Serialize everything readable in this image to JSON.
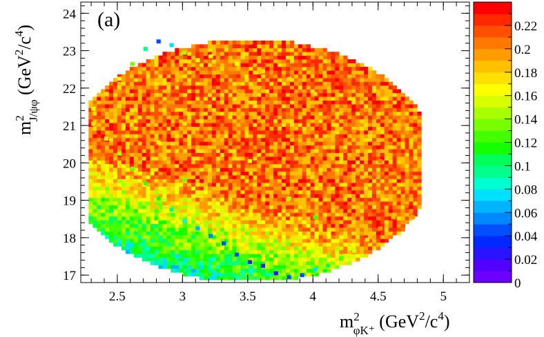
{
  "chart_data": {
    "type": "heatmap",
    "panel_label": "(a)",
    "xlabel": {
      "main": "m",
      "sup": "2",
      "sub": "φK⁺",
      "units": " (GeV",
      "units_sup1": "2",
      "units_mid": "/c",
      "units_sup2": "4",
      "units_end": ")"
    },
    "ylabel": {
      "main": "m",
      "sup": "2",
      "sub": "J/ψφ",
      "units": " (GeV",
      "units_sup1": "2",
      "units_mid": "/c",
      "units_sup2": "4",
      "units_end": ")"
    },
    "xlim": [
      2.22,
      5.2
    ],
    "ylim": [
      16.8,
      24.3
    ],
    "x_ticks": [
      2.5,
      3,
      3.5,
      4,
      4.5,
      5
    ],
    "x_tick_labels": [
      "2.5",
      "3",
      "3.5",
      "4",
      "4.5",
      "5"
    ],
    "y_ticks": [
      17,
      18,
      19,
      20,
      21,
      22,
      23,
      24
    ],
    "y_tick_labels": [
      "17",
      "18",
      "19",
      "20",
      "21",
      "22",
      "23",
      "24"
    ],
    "colorbar": {
      "range": [
        0,
        0.24
      ],
      "ticks": [
        0,
        0.02,
        0.04,
        0.06,
        0.08,
        0.1,
        0.12,
        0.14,
        0.16,
        0.18,
        0.2,
        0.22
      ],
      "tick_labels": [
        "0",
        "0.02",
        "0.04",
        "0.06",
        "0.08",
        "0.1",
        "0.12",
        "0.14",
        "0.16",
        "0.18",
        "0.2",
        "0.22"
      ],
      "colors": [
        "#6a00ff",
        "#5200ff",
        "#2a14ff",
        "#0028ff",
        "#0050ff",
        "#0088ff",
        "#00b4ff",
        "#00e0ff",
        "#00ffd0",
        "#00ff8c",
        "#00ff5a",
        "#14ff00",
        "#44ff00",
        "#78ff00",
        "#a8ff00",
        "#d8ff00",
        "#ffff00",
        "#ffe000",
        "#ffc000",
        "#ff9c00",
        "#ff7800",
        "#ff5000",
        "#ff2800",
        "#ff0000"
      ]
    },
    "grid": false,
    "legend": "none",
    "dalitz_region": {
      "x_range": [
        2.28,
        4.8
      ],
      "y_range": [
        16.87,
        23.27
      ],
      "bin_width_x": 0.0315,
      "bin_width_y": 0.1,
      "efficiency_trend": "lowest (0.02-0.06) along the lower edge near m2(J/psi phi) 17-18, rising to 0.14-0.20 toward the upper-right region"
    },
    "cells": [
      [
        2.3,
        21.4,
        0.16
      ],
      [
        2.3,
        21.0,
        0.17
      ],
      [
        2.4,
        21.8,
        0.17
      ],
      [
        2.4,
        20.6,
        0.15
      ],
      [
        2.5,
        22.2,
        0.16
      ],
      [
        2.5,
        20.2,
        0.14
      ],
      [
        2.6,
        22.6,
        0.13
      ],
      [
        2.6,
        19.8,
        0.13
      ],
      [
        2.7,
        23.0,
        0.09
      ],
      [
        2.7,
        19.4,
        0.12
      ],
      [
        2.8,
        23.2,
        0.04
      ],
      [
        2.8,
        19.0,
        0.11
      ],
      [
        2.9,
        23.1,
        0.07
      ],
      [
        2.9,
        18.7,
        0.09
      ],
      [
        3.0,
        22.9,
        0.14
      ],
      [
        3.0,
        18.4,
        0.08
      ],
      [
        3.1,
        22.7,
        0.15
      ],
      [
        3.1,
        18.2,
        0.06
      ],
      [
        3.2,
        18.0,
        0.05
      ],
      [
        3.3,
        17.8,
        0.04
      ],
      [
        3.4,
        17.5,
        0.04
      ],
      [
        3.5,
        17.3,
        0.03
      ],
      [
        3.6,
        17.2,
        0.03
      ],
      [
        3.7,
        17.0,
        0.02
      ],
      [
        3.8,
        16.9,
        0.04
      ],
      [
        3.9,
        16.95,
        0.04
      ],
      [
        4.0,
        17.1,
        0.07
      ],
      [
        4.1,
        17.2,
        0.1
      ],
      [
        4.2,
        17.4,
        0.12
      ],
      [
        4.3,
        17.6,
        0.15
      ],
      [
        4.4,
        17.9,
        0.17
      ],
      [
        4.5,
        18.2,
        0.19
      ],
      [
        4.6,
        18.5,
        0.18
      ],
      [
        4.7,
        18.8,
        0.2
      ],
      [
        4.75,
        18.5,
        0.19
      ],
      [
        4.4,
        19.5,
        0.21
      ],
      [
        4.5,
        20.0,
        0.2
      ],
      [
        4.3,
        20.8,
        0.19
      ],
      [
        4.2,
        21.3,
        0.18
      ],
      [
        4.0,
        21.8,
        0.17
      ],
      [
        3.8,
        22.2,
        0.17
      ],
      [
        3.6,
        22.4,
        0.17
      ],
      [
        3.4,
        22.6,
        0.16
      ],
      [
        3.2,
        22.8,
        0.16
      ],
      [
        3.0,
        21.0,
        0.17
      ],
      [
        3.5,
        20.0,
        0.16
      ],
      [
        3.0,
        19.5,
        0.13
      ],
      [
        3.8,
        19.0,
        0.14
      ],
      [
        4.0,
        18.5,
        0.12
      ],
      [
        2.8,
        20.5,
        0.15
      ]
    ]
  }
}
